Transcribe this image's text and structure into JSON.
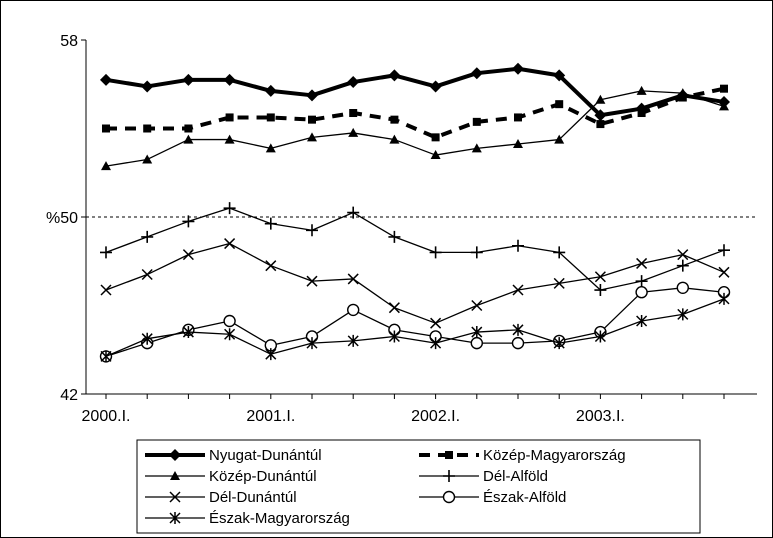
{
  "chart_data": {
    "type": "line",
    "title": "",
    "xlabel": "",
    "ylabel": "",
    "ylim": [
      42,
      58
    ],
    "y_ticks": [
      "42",
      "%50",
      "58"
    ],
    "reference_line": {
      "value": 50,
      "style": "dashed"
    },
    "x_ticks": [
      "2000.I.",
      "2001.I.",
      "2002.I.",
      "2003.I."
    ],
    "x": [
      0,
      1,
      2,
      3,
      4,
      5,
      6,
      7,
      8,
      9,
      10,
      11,
      12,
      13,
      14,
      15
    ],
    "grid": false,
    "legend_position": "bottom",
    "series": [
      {
        "name": "Nyugat-Dunántúl",
        "marker": "diamond",
        "style": "thick",
        "values": [
          56.2,
          55.9,
          56.2,
          56.2,
          55.7,
          55.5,
          56.1,
          56.4,
          55.9,
          56.5,
          56.7,
          56.4,
          54.6,
          54.9,
          55.5,
          55.2
        ]
      },
      {
        "name": "Közép-Magyarország",
        "marker": "square",
        "style": "thick-dashed",
        "values": [
          54.0,
          54.0,
          54.0,
          54.5,
          54.5,
          54.4,
          54.7,
          54.4,
          53.6,
          54.3,
          54.5,
          55.1,
          54.2,
          54.7,
          55.4,
          55.8
        ]
      },
      {
        "name": "Közép-Dunántúl",
        "marker": "triangle",
        "style": "thin",
        "values": [
          52.3,
          52.6,
          53.5,
          53.5,
          53.1,
          53.6,
          53.8,
          53.5,
          52.8,
          53.1,
          53.3,
          53.5,
          55.3,
          55.7,
          55.6,
          55.0
        ]
      },
      {
        "name": "Dél-Alföld",
        "marker": "plus",
        "style": "thin",
        "values": [
          48.4,
          49.1,
          49.8,
          50.4,
          49.7,
          49.4,
          50.2,
          49.1,
          48.4,
          48.4,
          48.7,
          48.4,
          46.7,
          47.1,
          47.8,
          48.5
        ]
      },
      {
        "name": "Dél-Dunántúl",
        "marker": "x",
        "style": "thin",
        "values": [
          46.7,
          47.4,
          48.3,
          48.8,
          47.8,
          47.1,
          47.2,
          45.9,
          45.2,
          46.0,
          46.7,
          47.0,
          47.3,
          47.9,
          48.3,
          47.5
        ]
      },
      {
        "name": "Észak-Alföld",
        "marker": "circle",
        "style": "thin",
        "values": [
          43.7,
          44.3,
          44.9,
          45.3,
          44.2,
          44.6,
          45.8,
          44.9,
          44.6,
          44.3,
          44.3,
          44.4,
          44.8,
          46.6,
          46.8,
          46.6
        ]
      },
      {
        "name": "Észak-Magyarország",
        "marker": "star",
        "style": "thin",
        "values": [
          43.7,
          44.5,
          44.8,
          44.7,
          43.8,
          44.3,
          44.4,
          44.6,
          44.3,
          44.8,
          44.9,
          44.3,
          44.6,
          45.3,
          45.6,
          46.3
        ]
      }
    ]
  }
}
